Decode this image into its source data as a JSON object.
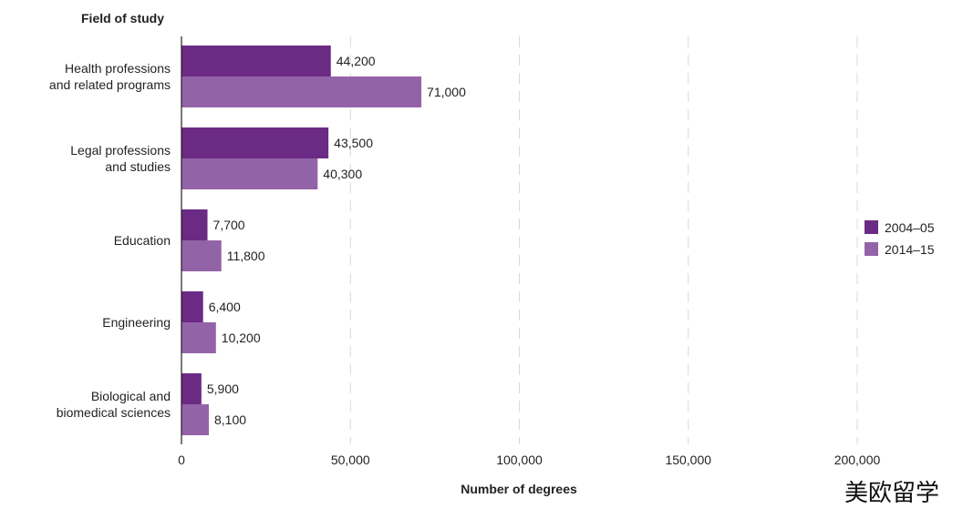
{
  "chart_data": {
    "type": "bar",
    "orientation": "horizontal",
    "y_axis_title": "Field of study",
    "x_axis_title": "Number of degrees",
    "categories": [
      [
        "Health professions",
        "and related programs"
      ],
      [
        "Legal professions",
        "and studies"
      ],
      [
        "Education"
      ],
      [
        "Engineering"
      ],
      [
        "Biological and",
        "biomedical sciences"
      ]
    ],
    "series": [
      {
        "name": "2004–05",
        "color": "#6b2a84",
        "values": [
          44200,
          43500,
          7700,
          6400,
          5900
        ],
        "labels": [
          "44,200",
          "43,500",
          "7,700",
          "6,400",
          "5,900"
        ]
      },
      {
        "name": "2014–15",
        "color": "#9363a8",
        "values": [
          71000,
          40300,
          11800,
          10200,
          8100
        ],
        "labels": [
          "71,000",
          "40,300",
          "11,800",
          "10,200",
          "8,100"
        ]
      }
    ],
    "xlim": [
      0,
      200000
    ],
    "x_ticks": [
      0,
      50000,
      100000,
      150000,
      200000
    ],
    "x_tick_labels": [
      "0",
      "50,000",
      "100,000",
      "150,000",
      "200,000"
    ],
    "grid": "vertical dashed",
    "legend_position": "right"
  },
  "watermark": "美欧留学"
}
